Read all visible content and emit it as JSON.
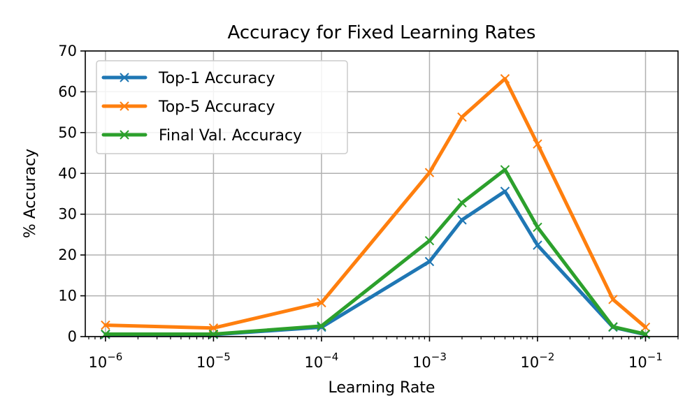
{
  "chart_data": {
    "type": "line",
    "title": "Accuracy for Fixed Learning Rates",
    "xlabel": "Learning Rate",
    "ylabel": "% Accuracy",
    "x_scale": "log",
    "xlim": [
      6.5e-07,
      0.2
    ],
    "ylim": [
      0,
      70
    ],
    "x_ticks": [
      1e-06,
      1e-05,
      0.0001,
      0.001,
      0.01,
      0.1
    ],
    "x_tick_labels": [
      {
        "base": "10",
        "exp": "−6"
      },
      {
        "base": "10",
        "exp": "−5"
      },
      {
        "base": "10",
        "exp": "−4"
      },
      {
        "base": "10",
        "exp": "−3"
      },
      {
        "base": "10",
        "exp": "−2"
      },
      {
        "base": "10",
        "exp": "−1"
      }
    ],
    "y_ticks": [
      0,
      10,
      20,
      30,
      40,
      50,
      60,
      70
    ],
    "y_tick_labels": [
      "0",
      "10",
      "20",
      "30",
      "40",
      "50",
      "60",
      "70"
    ],
    "grid": true,
    "legend_position": "top-left",
    "x": [
      1e-06,
      1e-05,
      0.0001,
      0.001,
      0.002,
      0.005,
      0.01,
      0.05,
      0.1
    ],
    "series": [
      {
        "name": "Top-1 Accuracy",
        "color": "#1f77b4",
        "values": [
          0.5,
          0.5,
          2.3,
          18.4,
          28.6,
          35.6,
          22.4,
          2.3,
          0.5
        ]
      },
      {
        "name": "Top-5 Accuracy",
        "color": "#ff7f0e",
        "values": [
          2.8,
          2.1,
          8.3,
          40.2,
          53.8,
          63.2,
          47.2,
          9.1,
          2.3
        ]
      },
      {
        "name": "Final Val. Accuracy",
        "color": "#2ca02c",
        "values": [
          0.6,
          0.6,
          2.6,
          23.5,
          32.8,
          40.9,
          26.8,
          2.4,
          0.6
        ]
      }
    ]
  }
}
